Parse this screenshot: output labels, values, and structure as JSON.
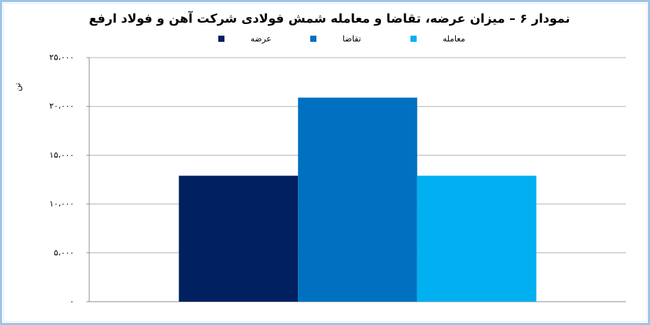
{
  "chart_data": {
    "type": "bar",
    "title": "نمودار ۶ – میزان عرضه، تقاضا و معامله شمش فولادی شرکت آهن و فولاد ارفع",
    "y_label": "تن",
    "categories": [
      null
    ],
    "series": [
      {
        "name": "عرضه",
        "color": "#002060",
        "values": [
          12900
        ]
      },
      {
        "name": "تقاضا",
        "color": "#0070c0",
        "values": [
          20900
        ]
      },
      {
        "name": "معامله",
        "color": "#00b0f0",
        "values": [
          12900
        ]
      }
    ],
    "ylim": [
      0,
      25000
    ],
    "yticks": [
      {
        "value": 0,
        "label": "۰"
      },
      {
        "value": 5000,
        "label": "۵،۰۰۰"
      },
      {
        "value": 10000,
        "label": "۱۰،۰۰۰"
      },
      {
        "value": 15000,
        "label": "۱۵،۰۰۰"
      },
      {
        "value": 20000,
        "label": "۲۰،۰۰۰"
      },
      {
        "value": 25000,
        "label": "۲۵،۰۰۰"
      }
    ],
    "grid": true,
    "legend": "top"
  }
}
